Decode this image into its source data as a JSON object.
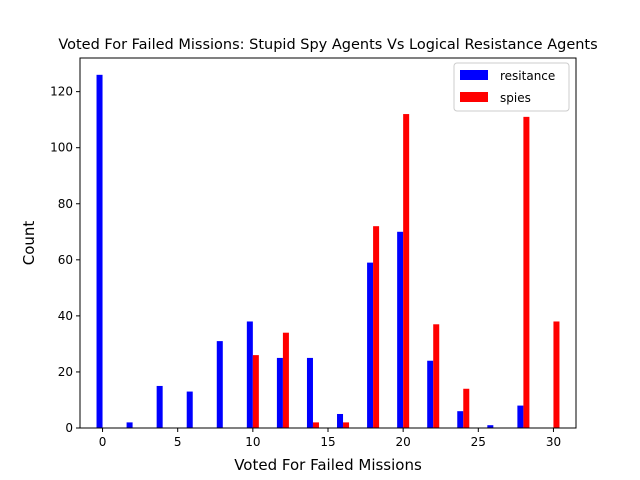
{
  "chart_data": {
    "type": "bar",
    "title": "Voted For Failed Missions: Stupid Spy Agents Vs Logical Resistance Agents",
    "xlabel": "Voted For Failed Missions",
    "ylabel": "Count",
    "xlim": [
      -1.5,
      31.5
    ],
    "ylim": [
      0,
      132
    ],
    "xticks": [
      0,
      5,
      10,
      15,
      20,
      25,
      30
    ],
    "yticks": [
      0,
      20,
      40,
      60,
      80,
      100,
      120
    ],
    "grid": false,
    "legend_position": "top-right",
    "series": [
      {
        "name": "resitance",
        "color": "#0000ff",
        "x": [
          0,
          2,
          4,
          6,
          8,
          10,
          12,
          14,
          16,
          18,
          20,
          22,
          24,
          26,
          28
        ],
        "values": [
          126,
          2,
          15,
          13,
          31,
          38,
          25,
          25,
          5,
          59,
          70,
          24,
          6,
          1,
          8
        ]
      },
      {
        "name": "spies",
        "color": "#ff0000",
        "x": [
          10,
          12,
          14,
          16,
          18,
          20,
          22,
          24,
          28,
          30
        ],
        "values": [
          26,
          34,
          2,
          2,
          72,
          112,
          37,
          14,
          111,
          38
        ]
      }
    ]
  }
}
